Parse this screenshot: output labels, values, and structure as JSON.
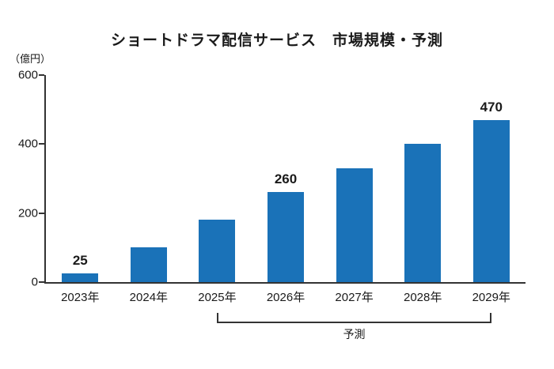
{
  "title": "ショートドラマ配信サービス　市場規模・予測",
  "unit_label": "（億円）",
  "colors": {
    "bar": "#1a72b8",
    "axis": "#333333",
    "text": "#1a1a1a"
  },
  "chart_data": {
    "type": "bar",
    "title": "ショートドラマ配信サービス　市場規模・予測",
    "categories": [
      "2023年",
      "2024年",
      "2025年",
      "2026年",
      "2027年",
      "2028年",
      "2029年"
    ],
    "values": [
      25,
      100,
      180,
      260,
      330,
      400,
      470
    ],
    "value_labels": [
      "25",
      null,
      null,
      "260",
      null,
      null,
      "470"
    ],
    "xlabel": "",
    "ylabel": "（億円）",
    "ylim": [
      0,
      600
    ],
    "yticks": [
      0,
      200,
      400,
      600
    ],
    "grid": false,
    "legend": "none",
    "forecast": {
      "label": "予測",
      "start_index": 2,
      "end_index": 6
    }
  }
}
